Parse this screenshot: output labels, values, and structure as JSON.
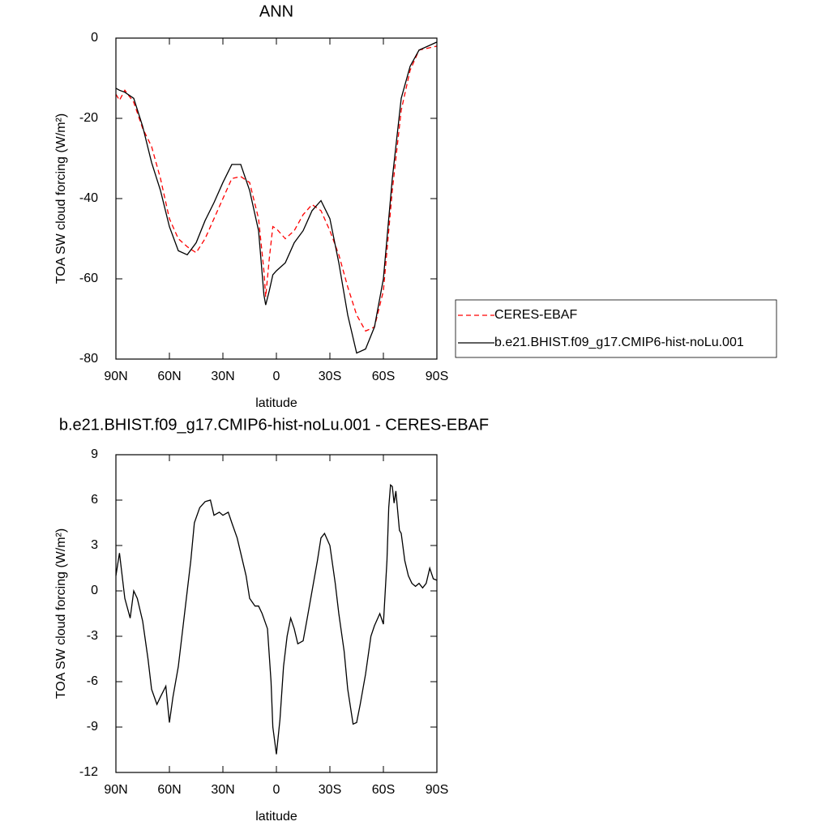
{
  "chart_data": [
    {
      "type": "line",
      "title": "ANN",
      "x_label": "latitude",
      "y_label": "TOA SW cloud forcing (W/m²)",
      "x": [
        90,
        88,
        85,
        80,
        75,
        70,
        65,
        60,
        55,
        50,
        45,
        40,
        35,
        30,
        25,
        20,
        15,
        10,
        7,
        6,
        4,
        2,
        0,
        -5,
        -10,
        -15,
        -20,
        -25,
        -30,
        -35,
        -40,
        -45,
        -50,
        -55,
        -60,
        -65,
        -70,
        -75,
        -80,
        -85,
        -90
      ],
      "series": [
        {
          "name": "CERES-EBAF",
          "color": "#ff0000",
          "line_style": "dashed",
          "values": [
            -14,
            -15.5,
            -13,
            -16,
            -22.5,
            -27,
            -35,
            -45,
            -50,
            -52,
            -53.5,
            -50,
            -45,
            -40,
            -35,
            -34.5,
            -36,
            -45,
            -58,
            -64.5,
            -55,
            -47,
            -47.5,
            -50,
            -48,
            -44,
            -41.5,
            -43,
            -48,
            -54,
            -62,
            -69,
            -73,
            -72,
            -63,
            -38,
            -18,
            -8,
            -3,
            -2.5,
            -2
          ]
        },
        {
          "name": "b.e21.BHIST.f09_g17.CMIP6-hist-noLu.001",
          "color": "#000000",
          "line_style": "solid",
          "values": [
            -12.5,
            -13,
            -13.5,
            -15,
            -22,
            -31,
            -38,
            -47,
            -53,
            -54,
            -51,
            -45.5,
            -41,
            -36,
            -31.5,
            -31.5,
            -38,
            -48,
            -64,
            -66.5,
            -63,
            -59,
            -58,
            -56,
            -51,
            -48,
            -43,
            -40.5,
            -45,
            -56,
            -69,
            -78.5,
            -77.5,
            -72,
            -60,
            -35,
            -15,
            -7,
            -3,
            -2,
            -1
          ]
        }
      ],
      "xlim": [
        90,
        -90
      ],
      "ylim": [
        -80,
        0
      ],
      "xticks": [
        {
          "value": 90,
          "label": "90N"
        },
        {
          "value": 60,
          "label": "60N"
        },
        {
          "value": 30,
          "label": "30N"
        },
        0,
        {
          "value": -30,
          "label": "30S"
        },
        {
          "value": -60,
          "label": "60S"
        },
        {
          "value": -90,
          "label": "90S"
        }
      ],
      "yticks": [
        0,
        -20,
        -40,
        -60,
        -80
      ],
      "legend": "right"
    },
    {
      "type": "line",
      "title": "b.e21.BHIST.f09_g17.CMIP6-hist-noLu.001 - CERES-EBAF",
      "x_label": "latitude",
      "y_label": "TOA SW cloud forcing (W/m²)",
      "x": [
        90,
        88,
        85,
        82,
        80,
        78,
        75,
        72,
        70,
        67,
        65,
        62,
        60,
        58,
        55,
        52,
        50,
        48,
        46,
        43,
        40,
        37,
        35,
        32,
        30,
        27,
        25,
        22,
        20,
        17,
        15,
        12,
        10,
        8,
        5,
        3,
        2,
        0,
        -2,
        -4,
        -6,
        -8,
        -10,
        -12,
        -15,
        -17,
        -20,
        -23,
        -25,
        -27,
        -30,
        -33,
        -35,
        -38,
        -40,
        -43,
        -45,
        -47,
        -50,
        -53,
        -55,
        -58,
        -60,
        -62,
        -63,
        -64,
        -65,
        -66,
        -67,
        -69,
        -70,
        -72,
        -74,
        -76,
        -78,
        -80,
        -82,
        -84,
        -86,
        -88,
        -90
      ],
      "series": [
        {
          "color": "#000000",
          "line_style": "solid",
          "values": [
            1,
            2.5,
            -0.5,
            -1.8,
            0,
            -0.5,
            -2,
            -4.5,
            -6.5,
            -7.5,
            -7,
            -6.3,
            -8.7,
            -7,
            -5,
            -2,
            0,
            2,
            4.5,
            5.5,
            5.9,
            6,
            5,
            5.2,
            5,
            5.2,
            4.5,
            3.5,
            2.5,
            1,
            -0.5,
            -1,
            -1,
            -1.5,
            -2.5,
            -6,
            -9,
            -10.8,
            -8.5,
            -5,
            -3,
            -1.8,
            -2.5,
            -3.5,
            -3.3,
            -2,
            0,
            2,
            3.5,
            3.8,
            3,
            0.5,
            -1.5,
            -4,
            -6.5,
            -8.8,
            -8.7,
            -7.5,
            -5.5,
            -3,
            -2.3,
            -1.5,
            -2.2,
            2,
            5.5,
            7,
            6.9,
            5.8,
            6.6,
            4,
            3.8,
            2,
            1,
            0.5,
            0.3,
            0.5,
            0.2,
            0.5,
            1.5,
            0.8,
            0.7
          ]
        }
      ],
      "xlim": [
        90,
        -90
      ],
      "ylim": [
        -12,
        9
      ],
      "xticks": [
        {
          "value": 90,
          "label": "90N"
        },
        {
          "value": 60,
          "label": "60N"
        },
        {
          "value": 30,
          "label": "30N"
        },
        0,
        {
          "value": -30,
          "label": "30S"
        },
        {
          "value": -60,
          "label": "60S"
        },
        {
          "value": -90,
          "label": "90S"
        }
      ],
      "yticks": [
        9,
        6,
        3,
        0,
        -3,
        -6,
        -9,
        -12
      ]
    }
  ]
}
